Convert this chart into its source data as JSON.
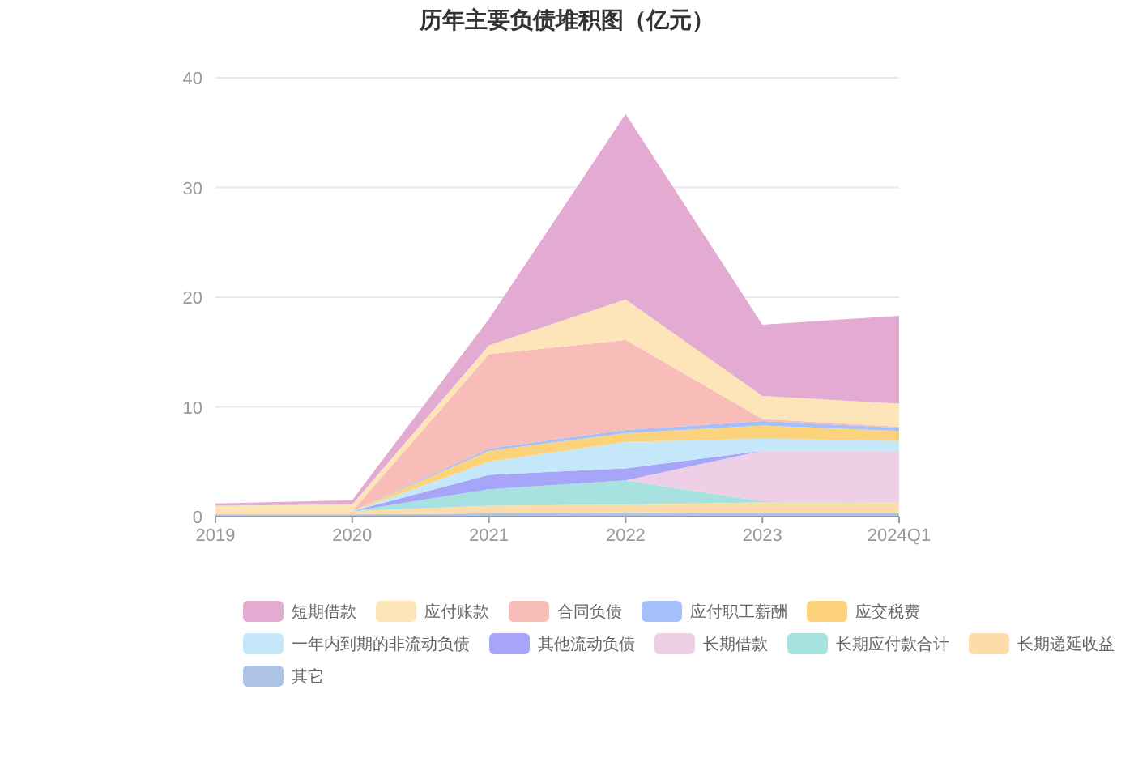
{
  "chart_data": {
    "type": "area",
    "stacked": true,
    "title": "历年主要负债堆积图（亿元）",
    "categories": [
      "2019",
      "2020",
      "2021",
      "2022",
      "2023",
      "2024Q1"
    ],
    "ylim": [
      0,
      40
    ],
    "yticks": [
      0,
      10,
      20,
      30,
      40
    ],
    "grid": "y",
    "legend": "bottom",
    "series": [
      {
        "name": "其它",
        "color": "#aec4e6",
        "values": [
          0.2,
          0.2,
          0.3,
          0.4,
          0.3,
          0.3
        ]
      },
      {
        "name": "长期递延收益",
        "color": "#fedcaa",
        "values": [
          0.3,
          0.3,
          0.7,
          0.7,
          1.0,
          1.0
        ]
      },
      {
        "name": "长期应付款合计",
        "color": "#a8e2e0",
        "values": [
          0,
          0,
          1.5,
          2.2,
          0.1,
          0
        ]
      },
      {
        "name": "长期借款",
        "color": "#eecfe6",
        "values": [
          0,
          0,
          0,
          0,
          4.6,
          4.7
        ]
      },
      {
        "name": "其他流动负债",
        "color": "#a7a5f7",
        "values": [
          0,
          0,
          1.3,
          1.1,
          0,
          null
        ]
      },
      {
        "name": "一年内到期的非流动负债",
        "color": "#c4e7fa",
        "values": [
          0,
          0,
          1.2,
          2.4,
          1.1,
          0.9
        ]
      },
      {
        "name": "应交税费",
        "color": "#fcd37a",
        "values": [
          0,
          0,
          1.0,
          0.8,
          1.2,
          0.9
        ]
      },
      {
        "name": "应付职工薪酬",
        "color": "#a4bffa",
        "values": [
          0,
          0,
          0.2,
          0.3,
          0.4,
          0.3
        ]
      },
      {
        "name": "合同负债",
        "color": "#f8bcb9",
        "values": [
          0,
          0,
          8.6,
          8.2,
          0.2,
          0.1
        ]
      },
      {
        "name": "应付账款",
        "color": "#fde4b9",
        "values": [
          0.5,
          0.6,
          0.8,
          3.7,
          2.1,
          2.1
        ]
      },
      {
        "name": "短期借款",
        "color": "#e3aad2",
        "values": [
          0.2,
          0.4,
          2.4,
          16.9,
          6.5,
          8.0
        ]
      }
    ]
  }
}
